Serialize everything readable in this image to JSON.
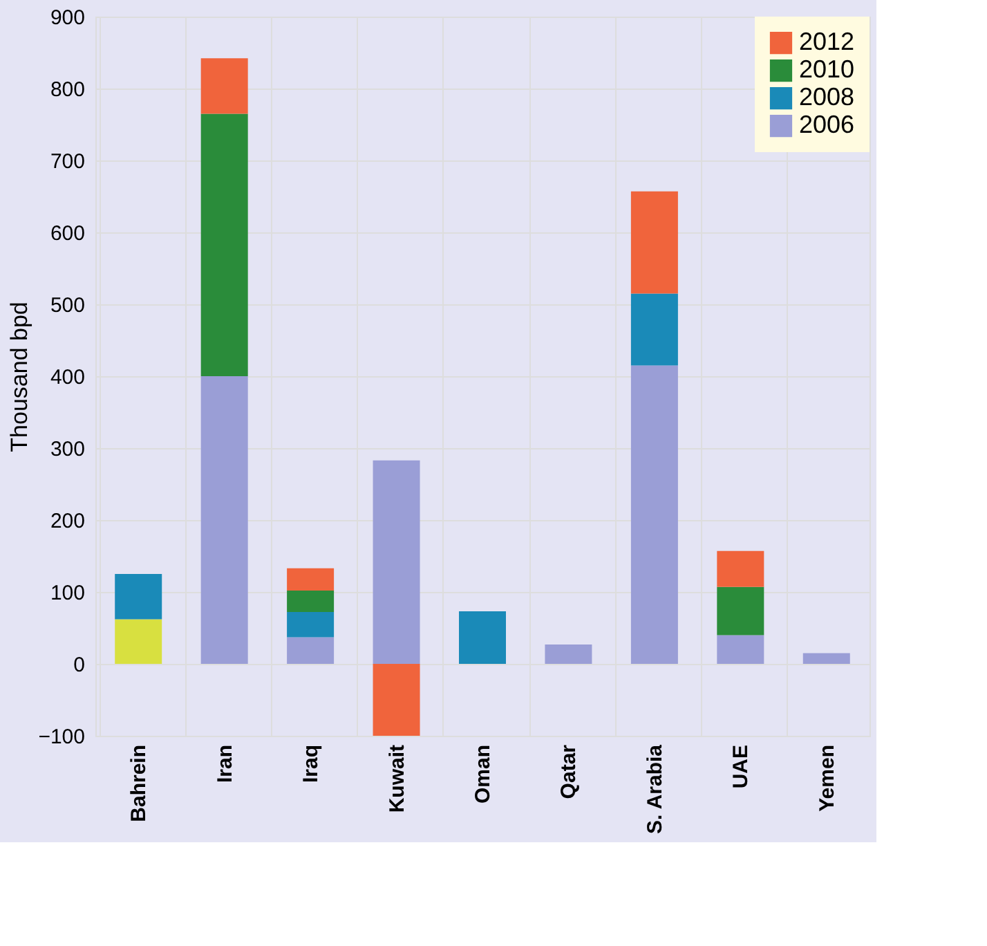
{
  "chart_data": {
    "type": "bar",
    "stacked": true,
    "ylabel": "Thousand bpd",
    "categories": [
      "Bahrein",
      "Iran",
      "Iraq",
      "Kuwait",
      "Oman",
      "Qatar",
      "S. Arabia",
      "UAE",
      "Yemen"
    ],
    "series": [
      {
        "name": "2006",
        "color": "#9a9ed6",
        "colors": [
          "#d8e040",
          "#9a9ed6",
          "#9a9ed6",
          "#9a9ed6",
          "#9a9ed6",
          "#9a9ed6",
          "#9a9ed6",
          "#9a9ed6",
          "#9a9ed6"
        ],
        "values": [
          62,
          400,
          37,
          283,
          null,
          27,
          415,
          40,
          15
        ]
      },
      {
        "name": "2008",
        "color": "#1a8ab8",
        "values": [
          63,
          null,
          35,
          null,
          73,
          null,
          100,
          null,
          null
        ]
      },
      {
        "name": "2010",
        "color": "#2a8c3a",
        "values": [
          null,
          365,
          30,
          null,
          null,
          null,
          null,
          67,
          null
        ]
      },
      {
        "name": "2012",
        "color": "#f0643c",
        "values": [
          null,
          77,
          31,
          -100,
          null,
          null,
          142,
          50,
          null
        ]
      }
    ],
    "ylim": [
      -100,
      900
    ],
    "yticks": [
      -100,
      0,
      100,
      200,
      300,
      400,
      500,
      600,
      700,
      800,
      900
    ],
    "grid": true,
    "legend": "top right"
  }
}
